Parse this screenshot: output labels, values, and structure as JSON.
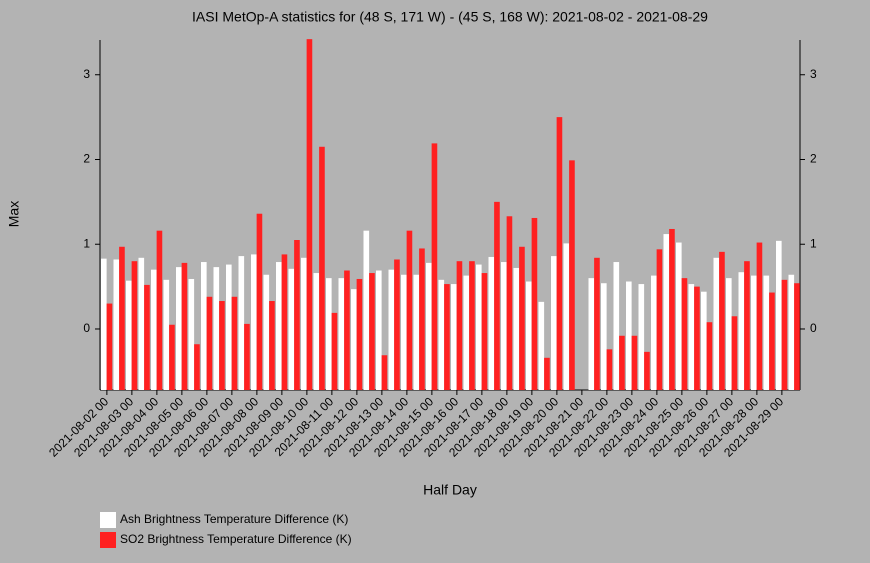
{
  "chart_data": {
    "type": "bar",
    "title": "IASI MetOp-A statistics for (48 S, 171 W) - (45 S, 168 W): 2021-08-02 - 2021-08-29",
    "xlabel": "Half Day",
    "ylabel": "Max",
    "categories": [
      "2021-08-02 00",
      null,
      "2021-08-03 00",
      null,
      "2021-08-04 00",
      null,
      "2021-08-05 00",
      null,
      "2021-08-06 00",
      null,
      "2021-08-07 00",
      null,
      "2021-08-08 00",
      null,
      "2021-08-09 00",
      null,
      "2021-08-10 00",
      null,
      "2021-08-11 00",
      null,
      "2021-08-12 00",
      null,
      "2021-08-13 00",
      null,
      "2021-08-14 00",
      null,
      "2021-08-15 00",
      null,
      "2021-08-16 00",
      null,
      "2021-08-17 00",
      null,
      "2021-08-18 00",
      null,
      "2021-08-19 00",
      null,
      "2021-08-20 00",
      null,
      "2021-08-21 00",
      null,
      "2021-08-22 00",
      null,
      "2021-08-23 00",
      null,
      "2021-08-24 00",
      null,
      "2021-08-25 00",
      null,
      "2021-08-26 00",
      null,
      "2021-08-27 00",
      null,
      "2021-08-28 00",
      null,
      "2021-08-29 00",
      null
    ],
    "series": [
      {
        "name": "Ash Brightness Temperature Difference (K)",
        "color": "#ffffff",
        "values": [
          0.83,
          0.82,
          0.57,
          0.84,
          0.7,
          0.58,
          0.73,
          0.59,
          0.79,
          0.73,
          0.76,
          0.86,
          0.88,
          0.64,
          0.79,
          0.71,
          0.84,
          0.66,
          0.6,
          0.6,
          0.47,
          1.16,
          0.69,
          0.7,
          0.64,
          0.64,
          0.78,
          0.58,
          0.53,
          0.63,
          0.76,
          0.85,
          0.79,
          0.72,
          0.56,
          0.32,
          0.86,
          1.01,
          null,
          0.6,
          0.54,
          0.79,
          0.56,
          0.53,
          0.63,
          1.12,
          1.02,
          0.53,
          0.44,
          0.84,
          0.6,
          0.67,
          0.63,
          0.63,
          1.04,
          0.64
        ]
      },
      {
        "name": "SO2 Brightness Temperature Difference (K)",
        "color": "#ff2020",
        "values": [
          0.3,
          0.97,
          0.8,
          0.52,
          1.16,
          0.05,
          0.78,
          -0.18,
          0.38,
          0.33,
          0.38,
          0.06,
          1.36,
          0.33,
          0.88,
          1.05,
          3.42,
          2.15,
          0.19,
          0.69,
          0.59,
          0.66,
          -0.31,
          0.82,
          1.16,
          0.95,
          2.19,
          0.53,
          0.8,
          0.8,
          0.66,
          1.5,
          1.33,
          0.97,
          1.31,
          -0.34,
          2.5,
          1.99,
          null,
          0.84,
          -0.24,
          -0.08,
          -0.08,
          -0.27,
          0.94,
          1.18,
          0.6,
          0.5,
          0.08,
          0.91,
          0.15,
          0.8,
          1.02,
          0.43,
          0.58,
          0.54
        ]
      }
    ],
    "ylim": [
      -0.72,
      3.41
    ],
    "yticks": [
      0,
      1,
      2,
      3
    ],
    "grid": false
  }
}
